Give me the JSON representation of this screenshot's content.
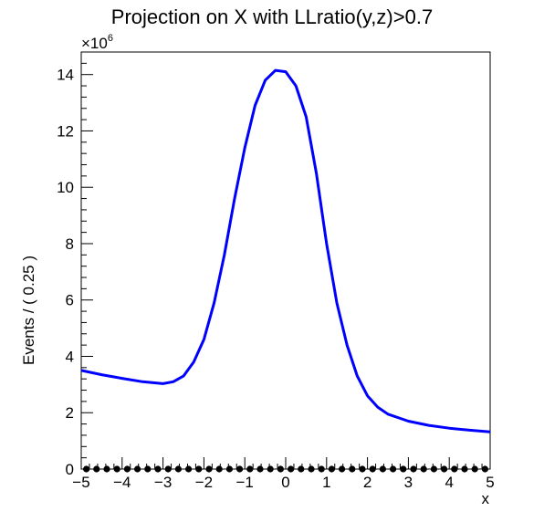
{
  "chart_data": {
    "type": "line",
    "title": "Projection on X with LLratio(y,z)>0.7",
    "xlabel": "x",
    "ylabel": "Events / ( 0.25 )",
    "y_multiplier_label": "×10",
    "y_multiplier_exponent": "6",
    "xlim": [
      -5,
      5
    ],
    "ylim": [
      0,
      14.8
    ],
    "x_ticks": [
      "−5",
      "−4",
      "−3",
      "−2",
      "−1",
      "0",
      "1",
      "2",
      "3",
      "4",
      "5"
    ],
    "y_ticks": [
      "0",
      "2",
      "4",
      "6",
      "8",
      "10",
      "12",
      "14"
    ],
    "grid": false,
    "series": [
      {
        "color": "#0000ff",
        "style": "line",
        "x": [
          -5,
          -4.5,
          -4,
          -3.5,
          -3,
          -2.75,
          -2.5,
          -2.25,
          -2,
          -1.75,
          -1.5,
          -1.25,
          -1,
          -0.75,
          -0.5,
          -0.25,
          0,
          0.25,
          0.5,
          0.75,
          1,
          1.25,
          1.5,
          1.75,
          2,
          2.25,
          2.5,
          3,
          3.5,
          4,
          4.5,
          5
        ],
        "y": [
          3.5,
          3.35,
          3.22,
          3.1,
          3.03,
          3.1,
          3.3,
          3.8,
          4.6,
          5.9,
          7.6,
          9.6,
          11.4,
          12.9,
          13.8,
          14.15,
          14.1,
          13.6,
          12.5,
          10.5,
          8.0,
          5.9,
          4.4,
          3.3,
          2.6,
          2.2,
          1.95,
          1.7,
          1.55,
          1.45,
          1.38,
          1.32
        ]
      },
      {
        "color": "#000000",
        "style": "markers",
        "x": [
          -4.875,
          -4.625,
          -4.375,
          -4.125,
          -3.875,
          -3.625,
          -3.375,
          -3.125,
          -2.875,
          -2.625,
          -2.375,
          -2.125,
          -1.875,
          -1.625,
          -1.375,
          -1.125,
          -0.875,
          -0.625,
          -0.375,
          -0.125,
          0.125,
          0.375,
          0.625,
          0.875,
          1.125,
          1.375,
          1.625,
          1.875,
          2.125,
          2.375,
          2.625,
          2.875,
          3.125,
          3.375,
          3.625,
          3.875,
          4.125,
          4.375,
          4.625,
          4.875
        ],
        "y": [
          0,
          0,
          0,
          0,
          0,
          0,
          0,
          0,
          0,
          0,
          0,
          0,
          0,
          0,
          0,
          0,
          0,
          0,
          0,
          0,
          0,
          0,
          0,
          0,
          0,
          0,
          0,
          0,
          0,
          0,
          0,
          0,
          0,
          0,
          0,
          0,
          0,
          0,
          0,
          0
        ]
      }
    ]
  }
}
